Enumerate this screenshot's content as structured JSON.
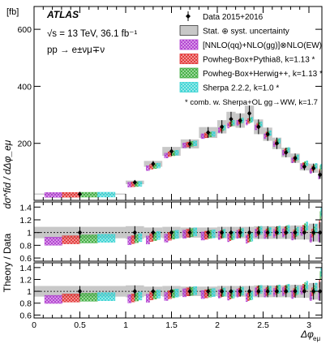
{
  "chart_data": {
    "type": "scatter",
    "experiment": "ATLAS",
    "energy_lumi": "√s = 13 TeV, 36.1 fb⁻¹",
    "process": "pp → e±νμ∓ν",
    "unit": "[fb]",
    "xlabel": "Δφ",
    "xlabel_sub": "eμ",
    "ylabel_top": "dσ^fid / dΔφ_eμ",
    "ylabel_ratio": "Theory / Data",
    "xlim": [
      0,
      3.1416
    ],
    "xticks": [
      "0",
      "0.5",
      "1",
      "1.5",
      "2",
      "2.5",
      "3"
    ],
    "xtick_values": [
      0,
      0.5,
      1,
      1.5,
      2,
      2.5,
      3
    ],
    "bins": [
      [
        0.0,
        1.0
      ],
      [
        1.0,
        1.2
      ],
      [
        1.2,
        1.4
      ],
      [
        1.4,
        1.6
      ],
      [
        1.6,
        1.8
      ],
      [
        1.8,
        2.0
      ],
      [
        2.0,
        2.1
      ],
      [
        2.1,
        2.2
      ],
      [
        2.2,
        2.3
      ],
      [
        2.3,
        2.4
      ],
      [
        2.4,
        2.5
      ],
      [
        2.5,
        2.6
      ],
      [
        2.6,
        2.7
      ],
      [
        2.7,
        2.8
      ],
      [
        2.8,
        2.9
      ],
      [
        2.9,
        3.0
      ],
      [
        3.0,
        3.1
      ],
      [
        3.1,
        3.1416
      ]
    ],
    "panels": [
      {
        "id": "main",
        "ylim": [
          0,
          680
        ],
        "yticks": [
          "200",
          "400",
          "600"
        ],
        "ytick_values": [
          200,
          400,
          600
        ]
      },
      {
        "id": "ratio1",
        "ylim": [
          0.55,
          1.48
        ],
        "yticks": [
          "0.6",
          "0.8",
          "1",
          "1.2",
          "1.4"
        ],
        "ytick_values": [
          0.6,
          0.8,
          1.0,
          1.2,
          1.4
        ]
      },
      {
        "id": "ratio2",
        "ylim": [
          0.55,
          1.48
        ],
        "yticks": [
          "0.6",
          "0.8",
          "1",
          "1.2",
          "1.4"
        ],
        "ytick_values": [
          0.6,
          0.8,
          1.0,
          1.2,
          1.4
        ]
      }
    ],
    "data": {
      "name": "Data 2015+2016",
      "values": [
        22,
        63,
        128,
        172,
        198,
        238,
        258,
        285,
        280,
        305,
        258,
        232,
        200,
        168,
        148,
        118,
        113,
        90
      ],
      "band": "Stat. ⊕ syst. uncertainty",
      "rel_unc": [
        0.09,
        0.1,
        0.08,
        0.09,
        0.08,
        0.08,
        0.09,
        0.09,
        0.09,
        0.09,
        0.1,
        0.1,
        0.1,
        0.1,
        0.11,
        0.11,
        0.14,
        0.16
      ]
    },
    "series": [
      {
        "name": "[NNLO(qq)+NLO(gg)]⊗NLO(EW)",
        "color": "#b03bd0",
        "style": "hatch-x",
        "values": [
          19,
          55,
          113,
          157,
          193,
          225,
          246,
          262,
          272,
          273,
          256,
          225,
          197,
          167,
          140,
          120,
          103,
          83
        ]
      },
      {
        "name": "Powheg-Box+Pythia8, k=1.13 *",
        "color": "#e23232",
        "style": "hatch-x",
        "values": [
          19.5,
          56,
          118,
          162,
          196,
          228,
          250,
          267,
          276,
          278,
          262,
          231,
          203,
          172,
          145,
          124,
          112,
          102
        ]
      },
      {
        "name": "Powheg-Box+Herwig++, k=1.13 *",
        "color": "#3fae3f",
        "style": "hatch-x",
        "values": [
          19.8,
          57,
          120,
          165,
          198,
          231,
          253,
          270,
          279,
          281,
          265,
          234,
          206,
          175,
          148,
          127,
          116,
          114
        ]
      },
      {
        "name": "Sherpa 2.2.2, k=1.0 *",
        "color": "#37d3d3",
        "style": "hatch-x",
        "values": [
          20,
          58,
          122,
          167,
          200,
          233,
          255,
          272,
          281,
          283,
          267,
          236,
          208,
          177,
          151,
          130,
          121,
          119
        ]
      }
    ],
    "ratio_markers": {
      "ratio1": [
        0.9
      ],
      "ratio2": [
        0.89,
        0.9,
        0.92
      ]
    },
    "legend_note": "* comb. w. Sherpa+OL gg→WW, k=1.7",
    "legend_position": "top-right",
    "grid": false
  }
}
